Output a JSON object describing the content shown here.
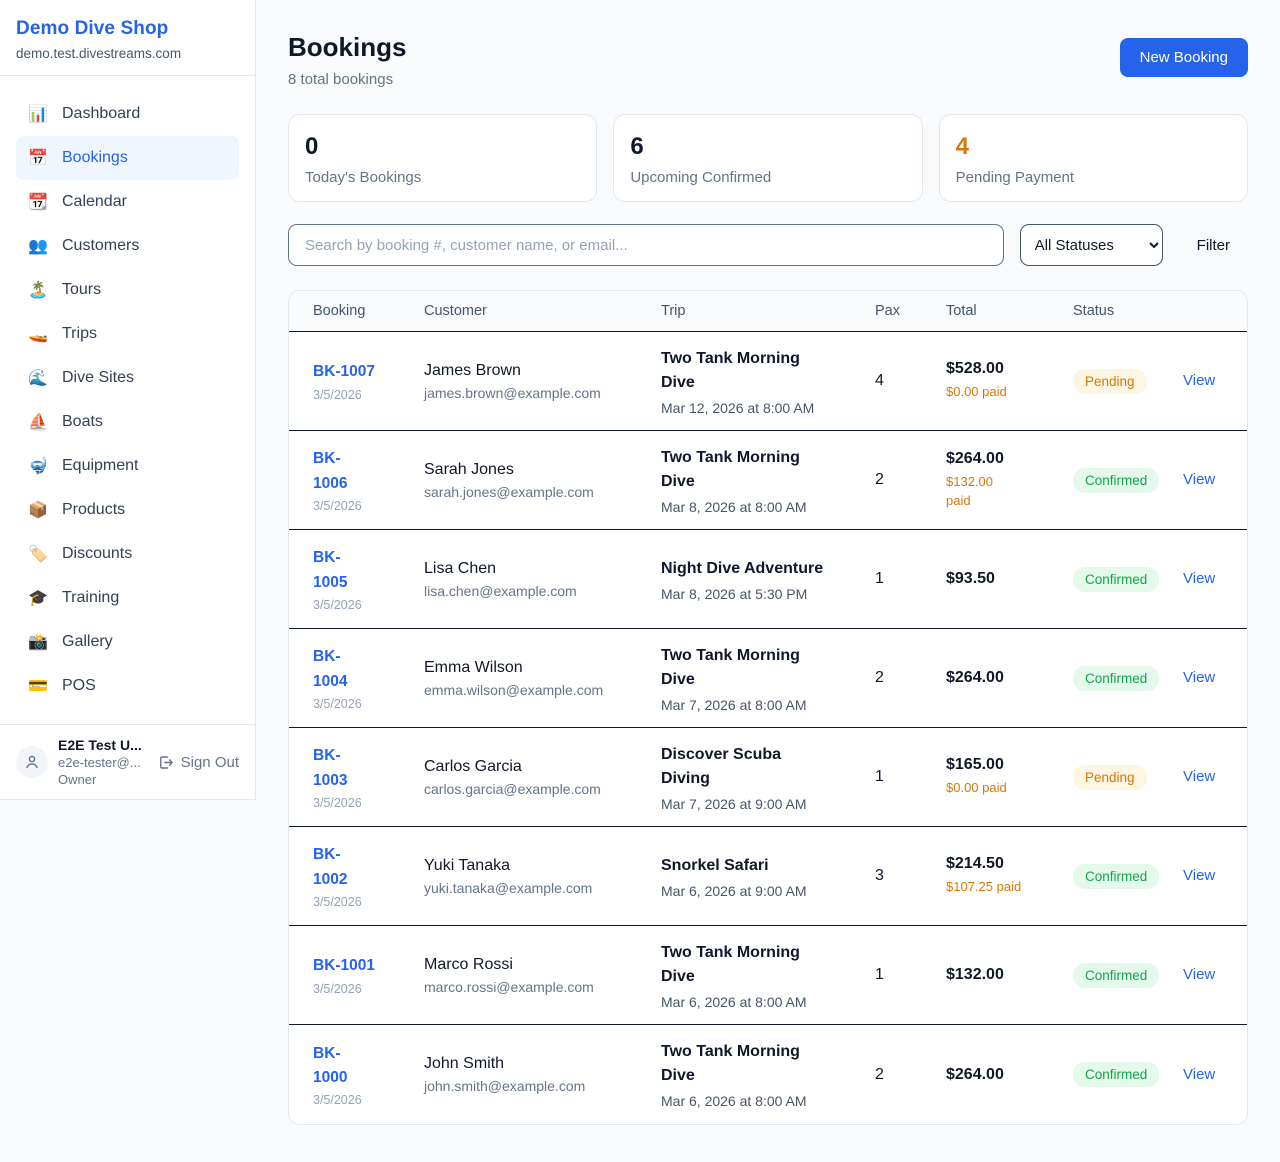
{
  "colors": {
    "accent": "#2563eb",
    "page_bg": "#f8fafc",
    "border_light": "#e2e8f0",
    "border_dark": "#0f172a",
    "orange": "#d97706",
    "green": "#16a34a"
  },
  "brand": {
    "name": "Demo Dive Shop",
    "domain": "demo.test.divestreams.com"
  },
  "sidebar": {
    "items": [
      {
        "icon": "📊",
        "icon_name": "bar-chart-icon",
        "label": "Dashboard",
        "active": false
      },
      {
        "icon": "📅",
        "icon_name": "calendar-icon",
        "label": "Bookings",
        "active": true
      },
      {
        "icon": "📆",
        "icon_name": "tear-off-calendar-icon",
        "label": "Calendar",
        "active": false
      },
      {
        "icon": "👥",
        "icon_name": "people-icon",
        "label": "Customers",
        "active": false
      },
      {
        "icon": "🏝️",
        "icon_name": "island-icon",
        "label": "Tours",
        "active": false
      },
      {
        "icon": "🚤",
        "icon_name": "speedboat-icon",
        "label": "Trips",
        "active": false
      },
      {
        "icon": "🌊",
        "icon_name": "wave-icon",
        "label": "Dive Sites",
        "active": false
      },
      {
        "icon": "⛵",
        "icon_name": "sailboat-icon",
        "label": "Boats",
        "active": false
      },
      {
        "icon": "🤿",
        "icon_name": "diving-mask-icon",
        "label": "Equipment",
        "active": false
      },
      {
        "icon": "📦",
        "icon_name": "package-icon",
        "label": "Products",
        "active": false
      },
      {
        "icon": "🏷️",
        "icon_name": "tag-icon",
        "label": "Discounts",
        "active": false
      },
      {
        "icon": "🎓",
        "icon_name": "graduation-cap-icon",
        "label": "Training",
        "active": false
      },
      {
        "icon": "📸",
        "icon_name": "camera-icon",
        "label": "Gallery",
        "active": false
      },
      {
        "icon": "💳",
        "icon_name": "credit-card-icon",
        "label": "POS",
        "active": false
      }
    ]
  },
  "user": {
    "name": "E2E Test U...",
    "email": "e2e-tester@...",
    "role": "Owner",
    "sign_out_label": "Sign Out"
  },
  "header": {
    "title": "Bookings",
    "subtitle": "8 total bookings",
    "new_booking_label": "New Booking"
  },
  "stats": [
    {
      "value": "0",
      "label": "Today's Bookings",
      "value_color": "#0f172a"
    },
    {
      "value": "6",
      "label": "Upcoming Confirmed",
      "value_color": "#0f172a"
    },
    {
      "value": "4",
      "label": "Pending Payment",
      "value_color": "#d97706"
    }
  ],
  "filters": {
    "search_placeholder": "Search by booking #, customer name, or email...",
    "status_selected": "All Statuses",
    "filter_label": "Filter"
  },
  "table": {
    "columns": [
      "Booking",
      "Customer",
      "Trip",
      "Pax",
      "Total",
      "Status"
    ],
    "rows": [
      {
        "id": "BK-1007",
        "date": "3/5/2026",
        "customer_name": "James Brown",
        "customer_email": "james.brown@example.com",
        "trip_name": "Two Tank Morning\nDive",
        "trip_datetime": "Mar 12, 2026 at 8:00 AM",
        "pax": "4",
        "total": "$528.00",
        "paid": "$0.00 paid",
        "status": "Pending",
        "action": "View"
      },
      {
        "id": "BK-\n1006",
        "date": "3/5/2026",
        "customer_name": "Sarah Jones",
        "customer_email": "sarah.jones@example.com",
        "trip_name": "Two Tank Morning\nDive",
        "trip_datetime": "Mar 8, 2026 at 8:00 AM",
        "pax": "2",
        "total": "$264.00",
        "paid": "$132.00\npaid",
        "status": "Confirmed",
        "action": "View"
      },
      {
        "id": "BK-\n1005",
        "date": "3/5/2026",
        "customer_name": "Lisa Chen",
        "customer_email": "lisa.chen@example.com",
        "trip_name": "Night Dive Adventure",
        "trip_datetime": "Mar 8, 2026 at 5:30 PM",
        "pax": "1",
        "total": "$93.50",
        "paid": null,
        "status": "Confirmed",
        "action": "View"
      },
      {
        "id": "BK-\n1004",
        "date": "3/5/2026",
        "customer_name": "Emma Wilson",
        "customer_email": "emma.wilson@example.com",
        "trip_name": "Two Tank Morning\nDive",
        "trip_datetime": "Mar 7, 2026 at 8:00 AM",
        "pax": "2",
        "total": "$264.00",
        "paid": null,
        "status": "Confirmed",
        "action": "View"
      },
      {
        "id": "BK-\n1003",
        "date": "3/5/2026",
        "customer_name": "Carlos Garcia",
        "customer_email": "carlos.garcia@example.com",
        "trip_name": "Discover Scuba\nDiving",
        "trip_datetime": "Mar 7, 2026 at 9:00 AM",
        "pax": "1",
        "total": "$165.00",
        "paid": "$0.00 paid",
        "status": "Pending",
        "action": "View"
      },
      {
        "id": "BK-\n1002",
        "date": "3/5/2026",
        "customer_name": "Yuki Tanaka",
        "customer_email": "yuki.tanaka@example.com",
        "trip_name": "Snorkel Safari",
        "trip_datetime": "Mar 6, 2026 at 9:00 AM",
        "pax": "3",
        "total": "$214.50",
        "paid": "$107.25 paid",
        "status": "Confirmed",
        "action": "View"
      },
      {
        "id": "BK-1001",
        "date": "3/5/2026",
        "customer_name": "Marco Rossi",
        "customer_email": "marco.rossi@example.com",
        "trip_name": "Two Tank Morning\nDive",
        "trip_datetime": "Mar 6, 2026 at 8:00 AM",
        "pax": "1",
        "total": "$132.00",
        "paid": null,
        "status": "Confirmed",
        "action": "View"
      },
      {
        "id": "BK-\n1000",
        "date": "3/5/2026",
        "customer_name": "John Smith",
        "customer_email": "john.smith@example.com",
        "trip_name": "Two Tank Morning\nDive",
        "trip_datetime": "Mar 6, 2026 at 8:00 AM",
        "pax": "2",
        "total": "$264.00",
        "paid": null,
        "status": "Confirmed",
        "action": "View"
      }
    ]
  }
}
